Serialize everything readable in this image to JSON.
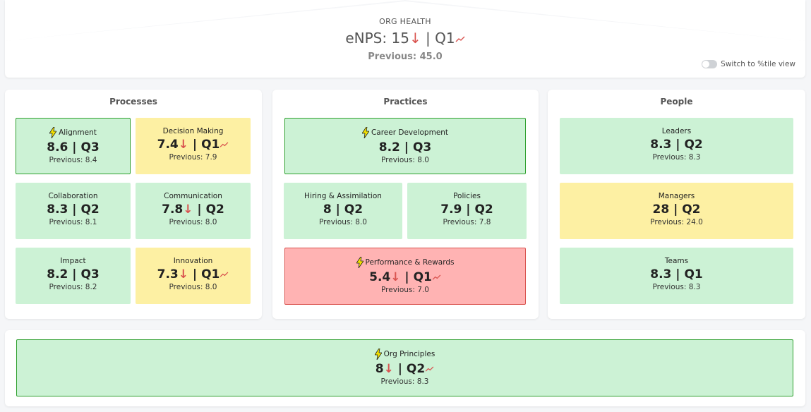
{
  "header": {
    "label": "ORG HEALTH",
    "enps_prefix": "eNPS: ",
    "enps_value": "15",
    "enps_quarter": "Q1",
    "previous": "Previous: 45.0",
    "toggle_label": "Switch to %tile view"
  },
  "processes": {
    "title": "Processes",
    "tiles": [
      {
        "title": "Alignment",
        "value": "8.6",
        "quarter": "Q3",
        "previous": "Previous: 8.4"
      },
      {
        "title": "Decision Making",
        "value": "7.4",
        "quarter": "Q1",
        "previous": "Previous: 7.9"
      },
      {
        "title": "Collaboration",
        "value": "8.3",
        "quarter": "Q2",
        "previous": "Previous: 8.1"
      },
      {
        "title": "Communication",
        "value": "7.8",
        "quarter": "Q2",
        "previous": "Previous: 8.0"
      },
      {
        "title": "Impact",
        "value": "8.2",
        "quarter": "Q3",
        "previous": "Previous: 8.2"
      },
      {
        "title": "Innovation",
        "value": "7.3",
        "quarter": "Q1",
        "previous": "Previous: 8.0"
      }
    ]
  },
  "practices": {
    "title": "Practices",
    "tiles": [
      {
        "title": "Career Development",
        "value": "8.2",
        "quarter": "Q3",
        "previous": "Previous: 8.0"
      },
      {
        "title": "Hiring & Assimilation",
        "value": "8",
        "quarter": "Q2",
        "previous": "Previous: 8.0"
      },
      {
        "title": "Policies",
        "value": "7.9",
        "quarter": "Q2",
        "previous": "Previous: 7.8"
      },
      {
        "title": "Performance & Rewards",
        "value": "5.4",
        "quarter": "Q1",
        "previous": "Previous: 7.0"
      }
    ]
  },
  "people": {
    "title": "People",
    "tiles": [
      {
        "title": "Leaders",
        "value": "8.3",
        "quarter": "Q2",
        "previous": "Previous: 8.3"
      },
      {
        "title": "Managers",
        "value": "28",
        "quarter": "Q2",
        "previous": "Previous: 24.0"
      },
      {
        "title": "Teams",
        "value": "8.3",
        "quarter": "Q1",
        "previous": "Previous: 8.3"
      }
    ]
  },
  "org_principles": {
    "title": "Org Principles",
    "value": "8",
    "quarter": "Q2",
    "previous": "Previous: 8.3"
  },
  "symbols": {
    "down_arrow": "↓",
    "separator": " | "
  },
  "colors": {
    "green_tile": "#ccf2d5",
    "yellow_tile": "#fdf0a3",
    "red_tile": "#ffb3b3",
    "down_arrow": "#d9534f",
    "bolt": "#f5e400"
  }
}
